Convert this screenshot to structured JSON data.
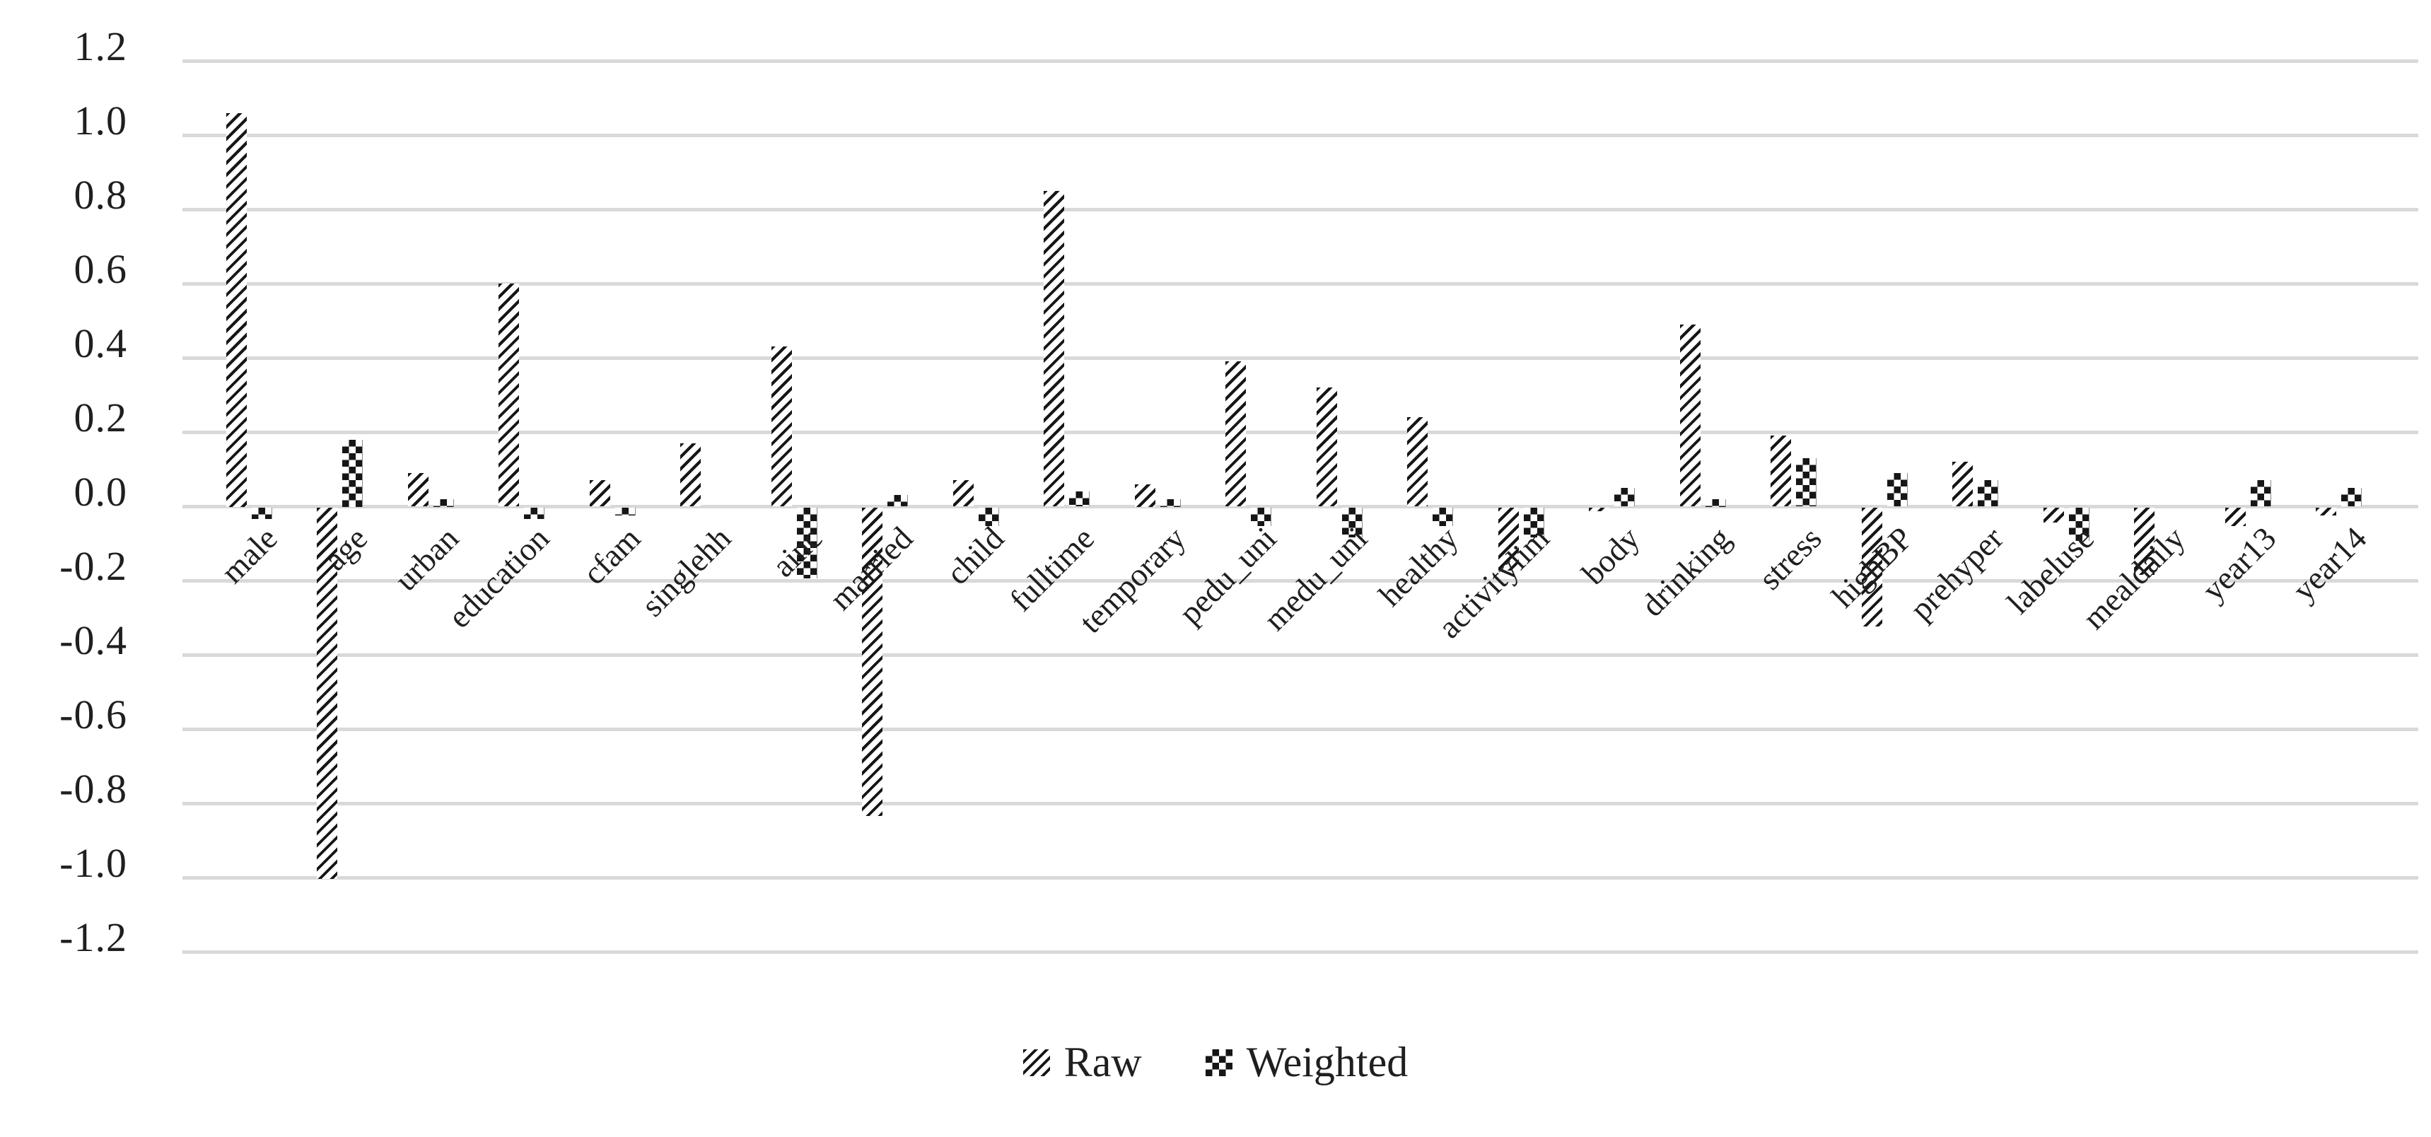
{
  "chart_data": {
    "type": "bar",
    "title": "",
    "xlabel": "",
    "ylabel": "",
    "categories": [
      "male",
      "age",
      "urban",
      "education",
      "cfam",
      "singlehh",
      "ainc",
      "married",
      "child",
      "fulltime",
      "temporary",
      "pedu_uni",
      "medu_uni",
      "healthy",
      "activitylim",
      "body",
      "drinking",
      "stress",
      "highBP",
      "prehyper",
      "labeluse",
      "mealdaily",
      "year13",
      "year14"
    ],
    "series": [
      {
        "name": "Raw",
        "pattern": "diagonal-hatch",
        "values": [
          1.06,
          -1.0,
          0.09,
          0.6,
          0.07,
          0.17,
          0.43,
          -0.83,
          0.07,
          0.85,
          0.06,
          0.39,
          0.32,
          0.24,
          -0.17,
          -0.01,
          0.49,
          0.19,
          -0.32,
          0.12,
          -0.04,
          -0.18,
          -0.05,
          -0.02
        ]
      },
      {
        "name": "Weighted",
        "pattern": "checkerboard",
        "values": [
          -0.03,
          0.18,
          0.02,
          -0.03,
          -0.02,
          0.0,
          -0.19,
          0.03,
          -0.05,
          0.04,
          0.02,
          -0.05,
          -0.08,
          -0.05,
          -0.08,
          0.05,
          0.02,
          0.13,
          0.09,
          0.07,
          -0.09,
          0.0,
          0.07,
          0.05
        ]
      }
    ],
    "ylim": [
      -1.2,
      1.2
    ],
    "ytick_step": 0.2,
    "y_ticks": [
      "1.2",
      "1.0",
      "0.8",
      "0.6",
      "0.4",
      "0.2",
      "0.0",
      "-0.2",
      "-0.4",
      "-0.6",
      "-0.8",
      "-1.0",
      "-1.2"
    ],
    "grid": true,
    "legend_position": "bottom",
    "colors": {
      "bar_ink": "#161616",
      "gridline": "#d9d9d9",
      "text": "#1f1f1f",
      "background": "#ffffff"
    }
  },
  "legend": {
    "raw_label": "Raw",
    "weighted_label": "Weighted"
  }
}
